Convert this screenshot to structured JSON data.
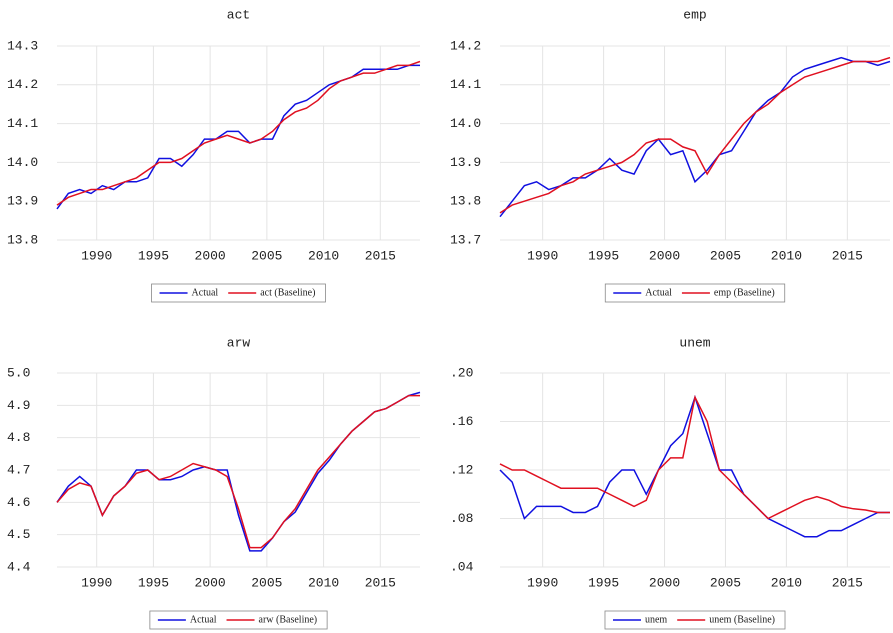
{
  "chart_data": [
    {
      "type": "line",
      "title": "act",
      "xlim": [
        1986.5,
        2018.5
      ],
      "xticks": [
        1990,
        1995,
        2000,
        2005,
        2010,
        2015
      ],
      "ylim": [
        13.8,
        14.3
      ],
      "yticks": [
        13.8,
        13.9,
        {
          "value": 14.0,
          "label": "14.0"
        },
        14.1,
        14.2,
        14.3
      ],
      "grid": true,
      "x": [
        1986.5,
        1987.5,
        1988.5,
        1989.5,
        1990.5,
        1991.5,
        1992.5,
        1993.5,
        1994.5,
        1995.5,
        1996.5,
        1997.5,
        1998.5,
        1999.5,
        2000.5,
        2001.5,
        2002.5,
        2003.5,
        2004.5,
        2005.5,
        2006.5,
        2007.5,
        2008.5,
        2009.5,
        2010.5,
        2011.5,
        2012.5,
        2013.5,
        2014.5,
        2015.5,
        2016.5,
        2017.5,
        2018.5
      ],
      "series": [
        {
          "name": "Actual",
          "color": "#1010e0",
          "values": [
            13.88,
            13.92,
            13.93,
            13.92,
            13.94,
            13.93,
            13.95,
            13.95,
            13.96,
            14.01,
            14.01,
            13.99,
            14.02,
            14.06,
            14.06,
            14.08,
            14.08,
            14.05,
            14.06,
            14.06,
            14.12,
            14.15,
            14.16,
            14.18,
            14.2,
            14.21,
            14.22,
            14.24,
            14.24,
            14.24,
            14.24,
            14.25,
            14.25
          ]
        },
        {
          "name": "act (Baseline)",
          "color": "#e01020",
          "values": [
            13.89,
            13.91,
            13.92,
            13.93,
            13.93,
            13.94,
            13.95,
            13.96,
            13.98,
            14.0,
            14.0,
            14.01,
            14.03,
            14.05,
            14.06,
            14.07,
            14.06,
            14.05,
            14.06,
            14.08,
            14.11,
            14.13,
            14.14,
            14.16,
            14.19,
            14.21,
            14.22,
            14.23,
            14.23,
            14.24,
            14.25,
            14.25,
            14.26
          ]
        }
      ]
    },
    {
      "type": "line",
      "title": "emp",
      "xlim": [
        1986.5,
        2018.5
      ],
      "xticks": [
        1990,
        1995,
        2000,
        2005,
        2010,
        2015
      ],
      "ylim": [
        13.7,
        14.2
      ],
      "yticks": [
        13.7,
        13.8,
        13.9,
        {
          "value": 14.0,
          "label": "14.0"
        },
        14.1,
        14.2
      ],
      "grid": true,
      "x": [
        1986.5,
        1987.5,
        1988.5,
        1989.5,
        1990.5,
        1991.5,
        1992.5,
        1993.5,
        1994.5,
        1995.5,
        1996.5,
        1997.5,
        1998.5,
        1999.5,
        2000.5,
        2001.5,
        2002.5,
        2003.5,
        2004.5,
        2005.5,
        2006.5,
        2007.5,
        2008.5,
        2009.5,
        2010.5,
        2011.5,
        2012.5,
        2013.5,
        2014.5,
        2015.5,
        2016.5,
        2017.5,
        2018.5
      ],
      "series": [
        {
          "name": "Actual",
          "color": "#1010e0",
          "values": [
            13.76,
            13.8,
            13.84,
            13.85,
            13.83,
            13.84,
            13.86,
            13.86,
            13.88,
            13.91,
            13.88,
            13.87,
            13.93,
            13.96,
            13.92,
            13.93,
            13.85,
            13.88,
            13.92,
            13.93,
            13.98,
            14.03,
            14.06,
            14.08,
            14.12,
            14.14,
            14.15,
            14.16,
            14.17,
            14.16,
            14.16,
            14.15,
            14.16
          ]
        },
        {
          "name": "emp (Baseline)",
          "color": "#e01020",
          "values": [
            13.77,
            13.79,
            13.8,
            13.81,
            13.82,
            13.84,
            13.85,
            13.87,
            13.88,
            13.89,
            13.9,
            13.92,
            13.95,
            13.96,
            13.96,
            13.94,
            13.93,
            13.87,
            13.92,
            13.96,
            14.0,
            14.03,
            14.05,
            14.08,
            14.1,
            14.12,
            14.13,
            14.14,
            14.15,
            14.16,
            14.16,
            14.16,
            14.17
          ]
        }
      ]
    },
    {
      "type": "line",
      "title": "arw",
      "xlim": [
        1986.5,
        2018.5
      ],
      "xticks": [
        1990,
        1995,
        2000,
        2005,
        2010,
        2015
      ],
      "ylim": [
        4.4,
        5.0
      ],
      "yticks": [
        4.4,
        4.5,
        4.6,
        4.7,
        4.8,
        4.9,
        {
          "value": 5.0,
          "label": "5.0"
        }
      ],
      "grid": true,
      "x": [
        1986.5,
        1987.5,
        1988.5,
        1989.5,
        1990.5,
        1991.5,
        1992.5,
        1993.5,
        1994.5,
        1995.5,
        1996.5,
        1997.5,
        1998.5,
        1999.5,
        2000.5,
        2001.5,
        2002.5,
        2003.5,
        2004.5,
        2005.5,
        2006.5,
        2007.5,
        2008.5,
        2009.5,
        2010.5,
        2011.5,
        2012.5,
        2013.5,
        2014.5,
        2015.5,
        2016.5,
        2017.5,
        2018.5
      ],
      "series": [
        {
          "name": "Actual",
          "color": "#1010e0",
          "values": [
            4.6,
            4.65,
            4.68,
            4.65,
            4.56,
            4.62,
            4.65,
            4.7,
            4.7,
            4.67,
            4.67,
            4.68,
            4.7,
            4.71,
            4.7,
            4.7,
            4.56,
            4.45,
            4.45,
            4.49,
            4.54,
            4.57,
            4.63,
            4.69,
            4.73,
            4.78,
            4.82,
            4.85,
            4.88,
            4.89,
            4.91,
            4.93,
            4.94
          ]
        },
        {
          "name": "arw (Baseline)",
          "color": "#e01020",
          "values": [
            4.6,
            4.64,
            4.66,
            4.65,
            4.56,
            4.62,
            4.65,
            4.69,
            4.7,
            4.67,
            4.68,
            4.7,
            4.72,
            4.71,
            4.7,
            4.68,
            4.58,
            4.46,
            4.46,
            4.49,
            4.54,
            4.58,
            4.64,
            4.7,
            4.74,
            4.78,
            4.82,
            4.85,
            4.88,
            4.89,
            4.91,
            4.93,
            4.93
          ]
        }
      ]
    },
    {
      "type": "line",
      "title": "unem",
      "xlim": [
        1986.5,
        2018.5
      ],
      "xticks": [
        1990,
        1995,
        2000,
        2005,
        2010,
        2015
      ],
      "ylim": [
        0.04,
        0.2
      ],
      "yticks": [
        {
          "value": 0.04,
          "label": ".04"
        },
        {
          "value": 0.08,
          "label": ".08"
        },
        {
          "value": 0.12,
          "label": ".12"
        },
        {
          "value": 0.16,
          "label": ".16"
        },
        {
          "value": 0.2,
          "label": ".20"
        }
      ],
      "grid": true,
      "x": [
        1986.5,
        1987.5,
        1988.5,
        1989.5,
        1990.5,
        1991.5,
        1992.5,
        1993.5,
        1994.5,
        1995.5,
        1996.5,
        1997.5,
        1998.5,
        1999.5,
        2000.5,
        2001.5,
        2002.5,
        2003.5,
        2004.5,
        2005.5,
        2006.5,
        2007.5,
        2008.5,
        2009.5,
        2010.5,
        2011.5,
        2012.5,
        2013.5,
        2014.5,
        2015.5,
        2016.5,
        2017.5,
        2018.5
      ],
      "series": [
        {
          "name": "unem",
          "color": "#1010e0",
          "values": [
            0.12,
            0.11,
            0.08,
            0.09,
            0.09,
            0.09,
            0.085,
            0.085,
            0.09,
            0.11,
            0.12,
            0.12,
            0.1,
            0.12,
            0.14,
            0.15,
            0.18,
            0.15,
            0.12,
            0.12,
            0.1,
            0.09,
            0.08,
            0.075,
            0.07,
            0.065,
            0.065,
            0.07,
            0.07,
            0.075,
            0.08,
            0.085,
            0.085
          ]
        },
        {
          "name": "unem (Baseline)",
          "color": "#e01020",
          "values": [
            0.125,
            0.12,
            0.12,
            0.115,
            0.11,
            0.105,
            0.105,
            0.105,
            0.105,
            0.1,
            0.095,
            0.09,
            0.095,
            0.12,
            0.13,
            0.13,
            0.18,
            0.16,
            0.12,
            0.11,
            0.1,
            0.09,
            0.08,
            0.085,
            0.09,
            0.095,
            0.098,
            0.095,
            0.09,
            0.088,
            0.087,
            0.085,
            0.085
          ]
        }
      ]
    }
  ]
}
